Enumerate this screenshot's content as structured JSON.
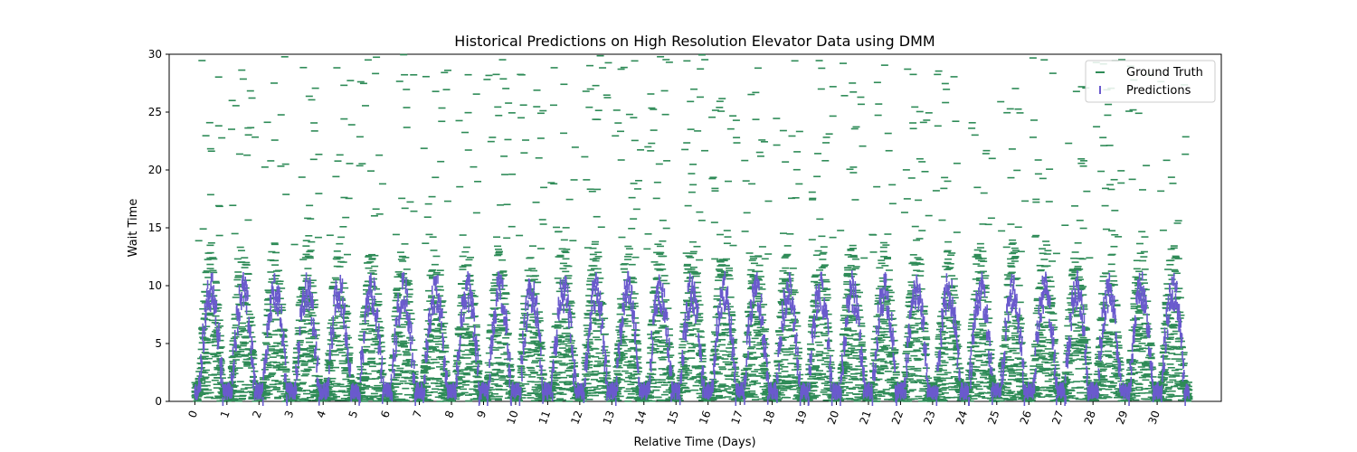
{
  "chart_data": {
    "type": "scatter",
    "title": "Historical Predictions on High Resolution Elevator Data using DMM",
    "xlabel": "Relative Time (Days)",
    "ylabel": "Wait Time",
    "xlim": [
      -0.8,
      32.0
    ],
    "ylim": [
      0,
      30
    ],
    "x_tick_values": [
      0,
      1,
      2,
      3,
      4,
      5,
      6,
      7,
      8,
      9,
      10,
      11,
      12,
      13,
      14,
      15,
      16,
      17,
      18,
      19,
      20,
      21,
      22,
      23,
      24,
      25,
      26,
      27,
      28,
      29,
      30
    ],
    "x_tick_labels": [
      "0",
      "1",
      "2",
      "3",
      "4",
      "5",
      "6",
      "7",
      "8",
      "9",
      "10",
      "11",
      "12",
      "13",
      "14",
      "15",
      "16",
      "17",
      "18",
      "19",
      "20",
      "21",
      "22",
      "23",
      "24",
      "25",
      "26",
      "27",
      "28",
      "29",
      "30"
    ],
    "x_tick_rotation_deg": -70,
    "y_ticks": [
      0,
      5,
      10,
      15,
      20,
      25,
      30
    ],
    "legend": {
      "placement": "top-right"
    },
    "colors": {
      "ground_truth": "#2e8b57",
      "predictions": "#6a5acd"
    },
    "series": [
      {
        "name": "Ground Truth",
        "marker": "_",
        "note_daily_pattern": "sampled every day 0-30; dense spread 0-12, sparse upper points to ~30",
        "daily_profile": {
          "active_day_fraction": [
            0.1,
            0.9
          ],
          "typical_peak": 10,
          "spread_max": 13,
          "outlier_max": 30
        }
      },
      {
        "name": "Predictions",
        "marker": "|",
        "daily_profile": {
          "active_day_fraction": [
            0.12,
            0.88
          ],
          "peak": 9.5,
          "night_level": 0.5
        }
      }
    ]
  }
}
